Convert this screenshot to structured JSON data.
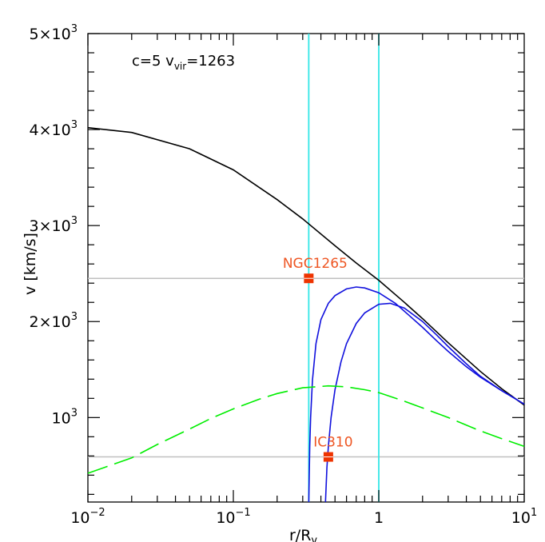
{
  "chart_data": {
    "type": "line",
    "annotation": {
      "prefix": "c=5  v",
      "sub": "vir",
      "suffix": "=1263"
    },
    "xlabel": {
      "main": "r/R",
      "sub": "v"
    },
    "ylabel": "v  [km/s]",
    "x_scale": "log",
    "xlim": [
      0.01,
      10
    ],
    "ylim": [
      120,
      5000
    ],
    "grid": false,
    "x_ticks": [
      {
        "value": 0.01,
        "base": "10",
        "exp": "−2"
      },
      {
        "value": 0.1,
        "base": "10",
        "exp": "−1"
      },
      {
        "value": 1,
        "base": "1",
        "exp": ""
      },
      {
        "value": 10,
        "base": "10",
        "exp": "1"
      }
    ],
    "y_ticks": [
      {
        "value": 1000,
        "base": "10",
        "exp": "3"
      },
      {
        "value": 2000,
        "base": "2×10",
        "exp": "3"
      },
      {
        "value": 3000,
        "base": "3×10",
        "exp": "3"
      },
      {
        "value": 4000,
        "base": "4×10",
        "exp": "3"
      },
      {
        "value": 5000,
        "base": "5×10",
        "exp": "3"
      }
    ],
    "colors": {
      "escape": "#000000",
      "blue": "#1010dd",
      "dashed": "#00ee00",
      "vertical": "#33e6e6",
      "horizontal": "#c0c0c0",
      "points": "#ee3300",
      "labels": "#ee5522"
    },
    "series": [
      {
        "style": "solid",
        "color_key": "escape",
        "x": [
          0.01,
          0.02,
          0.05,
          0.1,
          0.2,
          0.3,
          0.5,
          0.7,
          1,
          1.5,
          2,
          3,
          5,
          7,
          10
        ],
        "y": [
          4020,
          3970,
          3800,
          3580,
          3270,
          3070,
          2790,
          2610,
          2430,
          2200,
          2030,
          1780,
          1480,
          1300,
          1130
        ]
      },
      {
        "style": "solid",
        "color_key": "blue",
        "x": [
          0.33,
          0.335,
          0.34,
          0.35,
          0.37,
          0.4,
          0.45,
          0.5,
          0.6,
          0.7,
          0.8,
          1,
          1.3,
          1.6,
          2,
          2.5,
          3,
          4,
          5,
          7,
          10
        ],
        "y": [
          120,
          700,
          1000,
          1390,
          1770,
          2020,
          2190,
          2270,
          2340,
          2360,
          2350,
          2300,
          2190,
          2070,
          1940,
          1800,
          1690,
          1530,
          1420,
          1280,
          1140
        ]
      },
      {
        "style": "solid",
        "color_key": "blue",
        "x": [
          0.43,
          0.44,
          0.45,
          0.47,
          0.5,
          0.55,
          0.6,
          0.7,
          0.8,
          1,
          1.2,
          1.5,
          2,
          2.5,
          3,
          4,
          5,
          7,
          10
        ],
        "y": [
          120,
          480,
          700,
          1000,
          1290,
          1580,
          1770,
          1980,
          2090,
          2180,
          2190,
          2140,
          2000,
          1860,
          1740,
          1560,
          1430,
          1280,
          1140
        ]
      },
      {
        "style": "dashed",
        "color_key": "dashed",
        "x": [
          0.01,
          0.02,
          0.03,
          0.05,
          0.07,
          0.1,
          0.15,
          0.2,
          0.3,
          0.45,
          0.6,
          0.8,
          1,
          1.5,
          2,
          3,
          5,
          7,
          10
        ],
        "y": [
          420,
          580,
          720,
          880,
          990,
          1090,
          1190,
          1250,
          1310,
          1330,
          1320,
          1290,
          1260,
          1170,
          1100,
          1000,
          860,
          780,
          700
        ]
      }
    ],
    "vertical_lines": [
      0.33,
      1
    ],
    "horizontal_lines": [
      2450,
      590
    ],
    "points": [
      {
        "label": "NGC1265",
        "x": 0.33,
        "y": 2450
      },
      {
        "label": "IC310",
        "x": 0.45,
        "y": 590
      }
    ]
  }
}
